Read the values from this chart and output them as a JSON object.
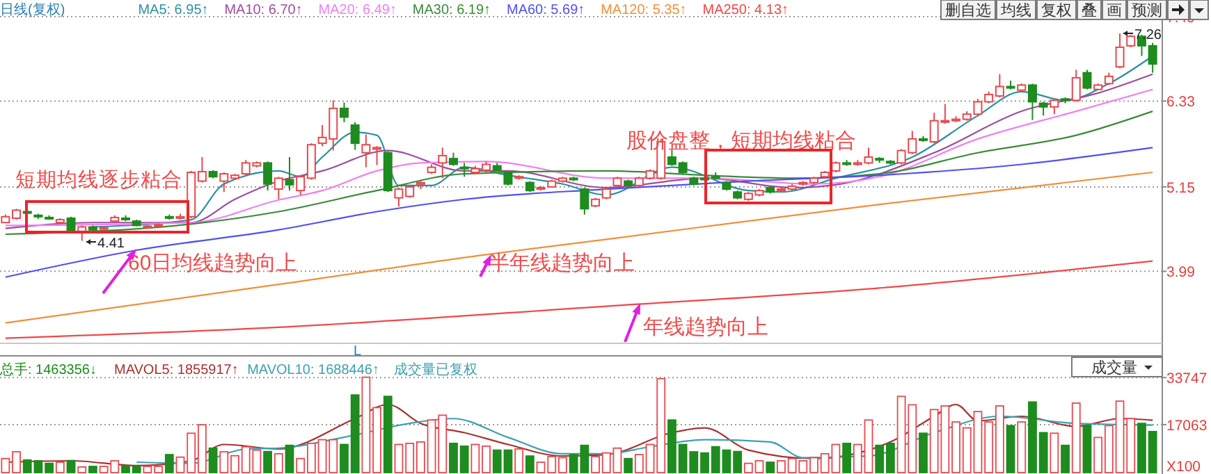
{
  "chart_data": [
    {
      "type": "candlestick",
      "title": "日线(复权)",
      "categories": [
        null,
        null,
        null,
        null,
        null,
        null,
        null,
        null,
        null,
        null,
        null,
        null,
        null,
        null,
        null,
        null,
        null,
        null,
        null,
        null,
        null,
        null,
        null,
        null,
        null,
        null,
        null,
        null,
        null,
        null,
        null,
        null,
        null,
        null,
        null,
        null,
        null,
        null,
        null,
        null,
        null,
        null,
        null,
        null,
        null,
        null,
        null,
        null,
        null,
        null,
        null,
        null,
        null,
        null,
        null,
        null,
        null,
        null,
        null,
        null,
        null,
        null,
        null,
        null,
        null,
        null,
        null,
        null,
        null,
        null,
        null,
        null,
        null,
        null,
        null,
        null,
        null,
        null,
        null,
        null,
        null,
        null,
        null,
        null,
        null,
        null,
        null,
        null,
        null,
        null,
        null,
        null,
        null,
        null,
        null,
        null,
        null,
        null,
        null,
        null,
        null,
        null,
        null,
        null,
        null,
        null
      ],
      "ohlc": [
        [
          4.66,
          4.77,
          4.66,
          4.74
        ],
        [
          4.72,
          4.85,
          4.7,
          4.83
        ],
        [
          4.81,
          4.83,
          4.78,
          4.79
        ],
        [
          4.76,
          4.78,
          4.71,
          4.74
        ],
        [
          4.73,
          4.76,
          4.7,
          4.72
        ],
        [
          4.66,
          4.72,
          4.65,
          4.7
        ],
        [
          4.72,
          4.74,
          4.52,
          4.54
        ],
        [
          4.54,
          4.62,
          4.41,
          4.6
        ],
        [
          4.6,
          4.62,
          4.54,
          4.56
        ],
        [
          4.57,
          4.6,
          4.55,
          4.59
        ],
        [
          4.68,
          4.76,
          4.66,
          4.73
        ],
        [
          4.72,
          4.76,
          4.68,
          4.7
        ],
        [
          4.68,
          4.7,
          4.61,
          4.62
        ],
        [
          4.6,
          4.63,
          4.58,
          4.61
        ],
        [
          4.62,
          4.65,
          4.6,
          4.63
        ],
        [
          4.74,
          4.77,
          4.7,
          4.73
        ],
        [
          4.72,
          4.78,
          4.7,
          4.74
        ],
        [
          4.74,
          5.37,
          4.72,
          5.35
        ],
        [
          5.23,
          5.56,
          5.21,
          5.36
        ],
        [
          5.36,
          5.38,
          5.27,
          5.29
        ],
        [
          5.23,
          5.35,
          5.08,
          5.33
        ],
        [
          5.27,
          5.33,
          5.25,
          5.31
        ],
        [
          5.33,
          5.52,
          5.31,
          5.48
        ],
        [
          5.44,
          5.5,
          5.42,
          5.48
        ],
        [
          5.48,
          5.5,
          5.1,
          5.19
        ],
        [
          5.12,
          5.29,
          4.98,
          5.27
        ],
        [
          5.25,
          5.56,
          5.1,
          5.18
        ],
        [
          5.1,
          5.31,
          5.04,
          5.29
        ],
        [
          5.27,
          5.75,
          5.25,
          5.73
        ],
        [
          5.75,
          6.0,
          5.71,
          5.83
        ],
        [
          5.81,
          6.34,
          5.65,
          6.23
        ],
        [
          6.23,
          6.31,
          6.04,
          6.11
        ],
        [
          6.0,
          6.04,
          5.66,
          5.75
        ],
        [
          5.62,
          5.87,
          5.42,
          5.73
        ],
        [
          5.67,
          5.71,
          5.45,
          5.69
        ],
        [
          5.62,
          5.64,
          5.08,
          5.1
        ],
        [
          5.0,
          5.14,
          4.88,
          5.12
        ],
        [
          5.02,
          5.17,
          5.0,
          5.15
        ],
        [
          5.19,
          5.23,
          5.12,
          5.21
        ],
        [
          5.35,
          5.46,
          5.33,
          5.42
        ],
        [
          5.48,
          5.69,
          5.27,
          5.58
        ],
        [
          5.54,
          5.62,
          5.44,
          5.46
        ],
        [
          5.42,
          5.48,
          5.29,
          5.4
        ],
        [
          5.35,
          5.44,
          5.33,
          5.4
        ],
        [
          5.38,
          5.5,
          5.35,
          5.46
        ],
        [
          5.44,
          5.48,
          5.37,
          5.38
        ],
        [
          5.35,
          5.37,
          5.17,
          5.19
        ],
        [
          5.27,
          5.31,
          5.25,
          5.29
        ],
        [
          5.21,
          5.23,
          5.08,
          5.1
        ],
        [
          5.12,
          5.16,
          5.1,
          5.14
        ],
        [
          5.15,
          5.25,
          5.14,
          5.23
        ],
        [
          5.23,
          5.29,
          5.21,
          5.27
        ],
        [
          5.27,
          5.29,
          5.23,
          5.25
        ],
        [
          5.12,
          5.14,
          4.77,
          4.85
        ],
        [
          4.89,
          5.0,
          4.87,
          4.98
        ],
        [
          5.0,
          5.14,
          4.98,
          5.12
        ],
        [
          5.17,
          5.29,
          5.15,
          5.27
        ],
        [
          5.23,
          5.25,
          5.15,
          5.17
        ],
        [
          5.17,
          5.29,
          5.15,
          5.27
        ],
        [
          5.27,
          5.39,
          5.25,
          5.37
        ],
        [
          5.27,
          5.81,
          5.25,
          5.77
        ],
        [
          5.56,
          5.66,
          5.44,
          5.46
        ],
        [
          5.48,
          5.5,
          5.33,
          5.35
        ],
        [
          5.27,
          5.29,
          5.17,
          5.19
        ],
        [
          5.27,
          5.29,
          5.23,
          5.25
        ],
        [
          5.29,
          5.35,
          5.25,
          5.27
        ],
        [
          5.21,
          5.23,
          5.1,
          5.12
        ],
        [
          5.08,
          5.1,
          4.98,
          5.0
        ],
        [
          4.98,
          5.08,
          4.96,
          5.06
        ],
        [
          5.04,
          5.12,
          5.02,
          5.1
        ],
        [
          5.14,
          5.16,
          5.06,
          5.08
        ],
        [
          5.1,
          5.14,
          5.08,
          5.12
        ],
        [
          5.12,
          5.19,
          5.1,
          5.16
        ],
        [
          5.19,
          5.23,
          5.17,
          5.21
        ],
        [
          5.21,
          5.29,
          5.19,
          5.27
        ],
        [
          5.29,
          5.37,
          5.27,
          5.35
        ],
        [
          5.37,
          5.5,
          5.35,
          5.48
        ],
        [
          5.48,
          5.52,
          5.44,
          5.46
        ],
        [
          5.46,
          5.52,
          5.44,
          5.48
        ],
        [
          5.48,
          5.69,
          5.46,
          5.56
        ],
        [
          5.54,
          5.56,
          5.48,
          5.52
        ],
        [
          5.5,
          5.52,
          5.46,
          5.48
        ],
        [
          5.48,
          5.67,
          5.46,
          5.65
        ],
        [
          5.62,
          5.92,
          5.6,
          5.81
        ],
        [
          5.81,
          5.85,
          5.77,
          5.79
        ],
        [
          5.77,
          6.17,
          5.75,
          6.06
        ],
        [
          6.04,
          6.29,
          6.02,
          6.06
        ],
        [
          6.06,
          6.12,
          6.04,
          6.08
        ],
        [
          6.08,
          6.19,
          6.06,
          6.15
        ],
        [
          6.15,
          6.36,
          6.13,
          6.32
        ],
        [
          6.32,
          6.46,
          6.3,
          6.42
        ],
        [
          6.4,
          6.7,
          6.38,
          6.53
        ],
        [
          6.53,
          6.61,
          6.49,
          6.51
        ],
        [
          6.48,
          6.57,
          6.46,
          6.55
        ],
        [
          6.55,
          6.57,
          6.07,
          6.32
        ],
        [
          6.3,
          6.32,
          6.13,
          6.25
        ],
        [
          6.25,
          6.36,
          6.15,
          6.34
        ],
        [
          6.36,
          6.38,
          6.3,
          6.34
        ],
        [
          6.34,
          6.76,
          6.32,
          6.65
        ],
        [
          6.72,
          6.76,
          6.49,
          6.51
        ],
        [
          6.49,
          6.57,
          6.48,
          6.55
        ],
        [
          6.57,
          6.72,
          6.55,
          6.67
        ],
        [
          6.8,
          7.26,
          6.78,
          7.07
        ],
        [
          7.09,
          7.24,
          7.07,
          7.22
        ],
        [
          7.22,
          7.24,
          6.95,
          7.09
        ],
        [
          7.09,
          7.13,
          6.72,
          6.84
        ]
      ],
      "series": [
        {
          "name": "MA5: 6.95↑",
          "type": "line",
          "color": "#2f8fa0",
          "values": [
            null,
            null,
            null,
            null,
            null,
            null,
            null,
            null,
            4.6,
            null,
            null,
            null,
            null,
            null,
            null,
            null,
            null,
            4.7,
            null,
            null,
            5.19,
            null,
            null,
            null,
            null,
            5.37,
            null,
            5.29,
            null,
            5.56,
            null,
            null,
            5.9,
            null,
            5.86,
            null,
            5.17,
            null,
            null,
            5.17,
            null,
            null,
            5.42,
            null,
            null,
            null,
            5.31,
            null,
            null,
            null,
            null,
            5.19,
            null,
            null,
            null,
            5.04,
            null,
            null,
            null,
            null,
            null,
            5.42,
            null,
            null,
            null,
            null,
            null,
            null,
            5.1,
            null,
            null,
            5.08,
            null,
            null,
            null,
            null,
            5.27,
            null,
            null,
            null,
            null,
            null,
            null,
            5.56,
            null,
            null,
            null,
            null,
            null,
            6.13,
            null,
            null,
            null,
            6.46,
            null,
            null,
            null,
            6.34,
            null,
            null,
            null,
            6.57,
            null,
            null,
            null,
            6.95
          ]
        },
        {
          "name": "MA10: 6.70↑",
          "type": "line",
          "color": "#9b4f9b",
          "values": [
            4.58,
            null,
            null,
            null,
            null,
            null,
            null,
            null,
            4.66,
            null,
            null,
            null,
            null,
            null,
            null,
            null,
            null,
            4.66,
            null,
            null,
            null,
            4.98,
            null,
            null,
            null,
            5.23,
            null,
            null,
            null,
            5.37,
            null,
            null,
            null,
            null,
            null,
            5.65,
            null,
            null,
            null,
            null,
            null,
            null,
            5.37,
            null,
            null,
            null,
            5.37,
            null,
            null,
            null,
            null,
            null,
            null,
            null,
            null,
            5.14,
            null,
            null,
            null,
            null,
            null,
            null,
            null,
            null,
            5.27,
            null,
            null,
            null,
            null,
            null,
            null,
            null,
            5.14,
            null,
            null,
            null,
            5.18,
            null,
            null,
            null,
            null,
            null,
            null,
            null,
            null,
            5.62,
            null,
            null,
            null,
            null,
            null,
            null,
            null,
            6.19,
            null,
            null,
            null,
            null,
            null,
            null,
            6.44,
            null,
            null,
            null,
            null,
            6.7
          ]
        },
        {
          "name": "MA20: 6.49↑",
          "type": "line",
          "color": "#f080f0",
          "values": [
            4.62,
            null,
            null,
            null,
            null,
            null,
            null,
            null,
            null,
            null,
            null,
            null,
            null,
            null,
            null,
            null,
            null,
            4.66,
            null,
            null,
            null,
            null,
            null,
            null,
            null,
            4.97,
            null,
            null,
            null,
            5.1,
            null,
            null,
            null,
            null,
            5.37,
            null,
            null,
            null,
            5.48,
            null,
            null,
            null,
            null,
            null,
            5.5,
            null,
            null,
            null,
            null,
            null,
            null,
            null,
            null,
            null,
            null,
            5.27,
            null,
            null,
            null,
            null,
            null,
            null,
            null,
            null,
            5.27,
            null,
            null,
            null,
            null,
            null,
            null,
            null,
            null,
            null,
            5.19,
            null,
            null,
            null,
            null,
            null,
            5.29,
            null,
            null,
            null,
            null,
            null,
            null,
            null,
            null,
            5.81,
            null,
            null,
            null,
            null,
            null,
            null,
            null,
            null,
            6.19,
            null,
            null,
            null,
            null,
            null,
            null,
            6.49
          ]
        },
        {
          "name": "MA30: 6.19↑",
          "type": "line",
          "color": "#3a8a3a",
          "values": [
            4.5,
            null,
            null,
            null,
            null,
            null,
            null,
            null,
            null,
            null,
            null,
            null,
            null,
            null,
            null,
            null,
            null,
            4.64,
            null,
            null,
            null,
            null,
            null,
            null,
            null,
            4.81,
            null,
            null,
            null,
            null,
            null,
            null,
            null,
            null,
            5.1,
            null,
            null,
            null,
            null,
            null,
            null,
            null,
            5.33,
            null,
            null,
            null,
            null,
            null,
            null,
            null,
            null,
            null,
            null,
            null,
            null,
            5.37,
            null,
            null,
            null,
            null,
            null,
            null,
            null,
            null,
            5.31,
            null,
            null,
            null,
            null,
            null,
            null,
            null,
            5.27,
            null,
            null,
            null,
            null,
            null,
            null,
            null,
            5.33,
            null,
            null,
            null,
            null,
            null,
            null,
            null,
            null,
            5.62,
            null,
            null,
            null,
            null,
            null,
            null,
            null,
            null,
            5.86,
            null,
            null,
            null,
            null,
            null,
            null,
            6.19
          ]
        },
        {
          "name": "MA60: 5.69↑",
          "type": "line",
          "color": "#5050f0",
          "values": [
            3.91,
            null,
            null,
            null,
            null,
            null,
            null,
            null,
            null,
            null,
            null,
            null,
            4.28,
            null,
            null,
            null,
            null,
            null,
            null,
            null,
            null,
            null,
            null,
            null,
            null,
            4.56,
            null,
            null,
            null,
            null,
            null,
            null,
            null,
            null,
            4.81,
            null,
            null,
            null,
            null,
            null,
            null,
            null,
            4.98,
            null,
            null,
            null,
            null,
            null,
            null,
            null,
            null,
            null,
            null,
            null,
            null,
            5.12,
            null,
            null,
            null,
            null,
            null,
            null,
            null,
            null,
            null,
            null,
            null,
            null,
            5.23,
            null,
            null,
            null,
            null,
            null,
            null,
            null,
            null,
            null,
            null,
            null,
            5.31,
            null,
            null,
            null,
            null,
            null,
            null,
            null,
            null,
            null,
            null,
            null,
            null,
            5.46,
            null,
            null,
            null,
            null,
            null,
            null,
            null,
            null,
            null,
            null,
            null,
            5.69
          ]
        },
        {
          "name": "MA120: 5.35↑",
          "type": "line",
          "color": "#f0903a",
          "values": [
            3.28,
            null,
            null,
            null,
            null,
            null,
            null,
            null,
            null,
            null,
            null,
            null,
            null,
            null,
            null,
            null,
            null,
            null,
            null,
            null,
            null,
            null,
            null,
            null,
            null,
            3.81,
            null,
            null,
            null,
            null,
            null,
            null,
            null,
            null,
            null,
            null,
            null,
            null,
            null,
            null,
            null,
            null,
            null,
            null,
            4.22,
            null,
            null,
            null,
            null,
            null,
            null,
            null,
            null,
            null,
            null,
            4.43,
            null,
            null,
            null,
            null,
            null,
            null,
            null,
            null,
            null,
            null,
            null,
            null,
            null,
            null,
            null,
            null,
            null,
            null,
            null,
            null,
            null,
            null,
            null,
            null,
            4.91,
            null,
            null,
            null,
            null,
            null,
            null,
            null,
            null,
            null,
            null,
            null,
            null,
            null,
            null,
            null,
            null,
            null,
            null,
            null,
            null,
            null,
            null,
            null,
            null,
            5.35
          ]
        },
        {
          "name": "MA250: 4.13↑",
          "type": "line",
          "color": "#f04848",
          "values": [
            3.07,
            null,
            null,
            null,
            null,
            null,
            null,
            null,
            null,
            null,
            null,
            null,
            null,
            null,
            null,
            null,
            null,
            null,
            null,
            null,
            null,
            null,
            null,
            null,
            null,
            3.22,
            null,
            null,
            null,
            null,
            null,
            null,
            null,
            null,
            null,
            null,
            null,
            null,
            null,
            null,
            null,
            null,
            null,
            null,
            null,
            null,
            null,
            null,
            null,
            null,
            null,
            null,
            null,
            null,
            null,
            3.51,
            null,
            null,
            null,
            null,
            null,
            null,
            null,
            null,
            null,
            null,
            null,
            null,
            null,
            null,
            null,
            null,
            null,
            null,
            null,
            null,
            null,
            null,
            null,
            null,
            3.76,
            null,
            null,
            null,
            null,
            null,
            null,
            null,
            null,
            null,
            null,
            null,
            null,
            null,
            null,
            null,
            null,
            null,
            null,
            null,
            null,
            null,
            null,
            null,
            null,
            4.13
          ]
        }
      ],
      "ylim": [
        3.0,
        7.49
      ],
      "yticks": [
        3.99,
        5.15,
        6.33,
        7.49
      ],
      "grid": "y",
      "legend": "top left",
      "annotations": [
        "短期均线逐步粘合",
        "60日均线趋势向上",
        "半年线趋势向上",
        "年线趋势向上",
        "股价盘整，短期均线粘合",
        "4.41",
        "7.26",
        "L",
        "删自选",
        "均线",
        "复权",
        "叠",
        "画",
        "预测"
      ]
    },
    {
      "type": "bar",
      "categories": [
        null,
        null,
        null,
        null,
        null,
        null,
        null,
        null,
        null,
        null,
        null,
        null,
        null,
        null,
        null,
        null,
        null,
        null,
        null,
        null,
        null,
        null,
        null,
        null,
        null,
        null,
        null,
        null,
        null,
        null,
        null,
        null,
        null,
        null,
        null,
        null,
        null,
        null,
        null,
        null,
        null,
        null,
        null,
        null,
        null,
        null,
        null,
        null,
        null,
        null,
        null,
        null,
        null,
        null,
        null,
        null,
        null,
        null,
        null,
        null,
        null,
        null,
        null,
        null,
        null,
        null,
        null,
        null,
        null,
        null,
        null,
        null,
        null,
        null,
        null,
        null,
        null,
        null,
        null,
        null,
        null,
        null,
        null,
        null,
        null,
        null,
        null,
        null,
        null,
        null,
        null,
        null,
        null,
        null,
        null,
        null,
        null,
        null,
        null,
        null,
        null,
        null,
        null,
        null,
        null,
        null
      ],
      "series": [
        {
          "name": "总手: 1463356↓",
          "type": "bar",
          "colors": [
            "#e8484f",
            "#e8484f",
            "#1e8c1e",
            "#1e8c1e",
            "#1e8c1e",
            "#e8484f",
            "#1e8c1e",
            "#e8484f",
            "#1e8c1e",
            "#e8484f",
            "#e8484f",
            "#1e8c1e",
            "#1e8c1e",
            "#e8484f",
            "#e8484f",
            "#1e8c1e",
            "#e8484f",
            "#e8484f",
            "#e8484f",
            "#1e8c1e",
            "#e8484f",
            "#e8484f",
            "#e8484f",
            "#e8484f",
            "#1e8c1e",
            "#e8484f",
            "#1e8c1e",
            "#e8484f",
            "#e8484f",
            "#e8484f",
            "#e8484f",
            "#1e8c1e",
            "#1e8c1e",
            "#e8484f",
            "#e8484f",
            "#1e8c1e",
            "#e8484f",
            "#e8484f",
            "#e8484f",
            "#e8484f",
            "#e8484f",
            "#1e8c1e",
            "#1e8c1e",
            "#e8484f",
            "#e8484f",
            "#1e8c1e",
            "#1e8c1e",
            "#e8484f",
            "#1e8c1e",
            "#e8484f",
            "#e8484f",
            "#e8484f",
            "#1e8c1e",
            "#1e8c1e",
            "#e8484f",
            "#e8484f",
            "#e8484f",
            "#1e8c1e",
            "#e8484f",
            "#e8484f",
            "#e8484f",
            "#1e8c1e",
            "#1e8c1e",
            "#1e8c1e",
            "#1e8c1e",
            "#1e8c1e",
            "#1e8c1e",
            "#1e8c1e",
            "#e8484f",
            "#e8484f",
            "#1e8c1e",
            "#e8484f",
            "#e8484f",
            "#e8484f",
            "#e8484f",
            "#e8484f",
            "#e8484f",
            "#1e8c1e",
            "#e8484f",
            "#e8484f",
            "#1e8c1e",
            "#1e8c1e",
            "#e8484f",
            "#e8484f",
            "#1e8c1e",
            "#e8484f",
            "#e8484f",
            "#e8484f",
            "#e8484f",
            "#e8484f",
            "#e8484f",
            "#e8484f",
            "#1e8c1e",
            "#e8484f",
            "#1e8c1e",
            "#1e8c1e",
            "#e8484f",
            "#1e8c1e",
            "#e8484f",
            "#1e8c1e",
            "#e8484f",
            "#e8484f",
            "#e8484f",
            "#e8484f",
            "#1e8c1e",
            "#1e8c1e"
          ],
          "values": [
            5000,
            7400,
            4500,
            4200,
            3300,
            3700,
            4300,
            2000,
            2200,
            2200,
            4200,
            2500,
            2300,
            2200,
            2200,
            6400,
            5500,
            14000,
            17000,
            8700,
            7400,
            6000,
            9200,
            8000,
            7500,
            6700,
            9700,
            5000,
            10400,
            11700,
            11700,
            10000,
            27600,
            33900,
            23100,
            27100,
            10000,
            10400,
            10900,
            18700,
            20400,
            10400,
            9400,
            10000,
            9400,
            8000,
            8000,
            8400,
            5900,
            3700,
            5700,
            5300,
            6400,
            9700,
            5700,
            7000,
            8700,
            5000,
            6400,
            10000,
            33400,
            18700,
            10000,
            7400,
            7000,
            9200,
            8000,
            7500,
            3300,
            4200,
            3700,
            4200,
            5000,
            4200,
            5300,
            6700,
            10000,
            10400,
            10000,
            18700,
            9700,
            10400,
            27100,
            24100,
            14000,
            22400,
            23700,
            18000,
            15900,
            21700,
            18000,
            23700,
            16700,
            18000,
            25100,
            14200,
            14000,
            9700,
            24700,
            16700,
            12500,
            16700,
            25400,
            19200,
            17500,
            14600
          ]
        },
        {
          "name": "MAVOL5: 1855917↑",
          "type": "line",
          "color": "#a83232",
          "values": [
            3700,
            null,
            null,
            null,
            null,
            null,
            4200,
            null,
            null,
            null,
            null,
            null,
            2500,
            null,
            null,
            null,
            null,
            4200,
            null,
            null,
            10000,
            null,
            null,
            null,
            null,
            8400,
            null,
            null,
            null,
            null,
            null,
            null,
            19200,
            null,
            null,
            24200,
            null,
            null,
            17500,
            null,
            null,
            null,
            14200,
            null,
            null,
            null,
            10000,
            null,
            null,
            null,
            null,
            5900,
            null,
            null,
            null,
            6400,
            null,
            null,
            null,
            null,
            null,
            14200,
            null,
            null,
            15900,
            null,
            null,
            null,
            8000,
            null,
            null,
            null,
            null,
            null,
            5000,
            null,
            null,
            null,
            null,
            null,
            null,
            10900,
            null,
            null,
            null,
            20000,
            null,
            24200,
            null,
            18400,
            null,
            null,
            null,
            20000,
            null,
            null,
            null,
            null,
            16400,
            null,
            null,
            null,
            19200,
            null,
            null,
            18600
          ]
        },
        {
          "name": "MAVOL10: 1688446↑",
          "type": "line",
          "color": "#3fa0b0",
          "values": [
            null,
            null,
            null,
            null,
            null,
            null,
            null,
            null,
            null,
            null,
            null,
            null,
            3700,
            null,
            null,
            null,
            null,
            3300,
            null,
            null,
            null,
            null,
            8400,
            null,
            null,
            8700,
            null,
            null,
            null,
            null,
            null,
            null,
            13400,
            null,
            null,
            null,
            null,
            17500,
            null,
            null,
            null,
            19200,
            null,
            null,
            null,
            null,
            12500,
            null,
            null,
            null,
            null,
            6700,
            null,
            null,
            null,
            6700,
            null,
            null,
            null,
            9200,
            null,
            null,
            null,
            null,
            11700,
            null,
            null,
            null,
            null,
            null,
            10900,
            null,
            null,
            5300,
            null,
            null,
            null,
            null,
            null,
            5900,
            null,
            null,
            null,
            null,
            null,
            14200,
            null,
            null,
            null,
            null,
            null,
            20000,
            null,
            null,
            null,
            null,
            null,
            null,
            17500,
            null,
            null,
            null,
            null,
            null,
            null,
            16900
          ]
        }
      ],
      "ylim": [
        0,
        41000
      ],
      "yticks": [
        17063,
        33747
      ],
      "grid": "y",
      "legend": "top left",
      "annotations": [
        "成交量已复权",
        "X100",
        "成交量"
      ]
    }
  ]
}
